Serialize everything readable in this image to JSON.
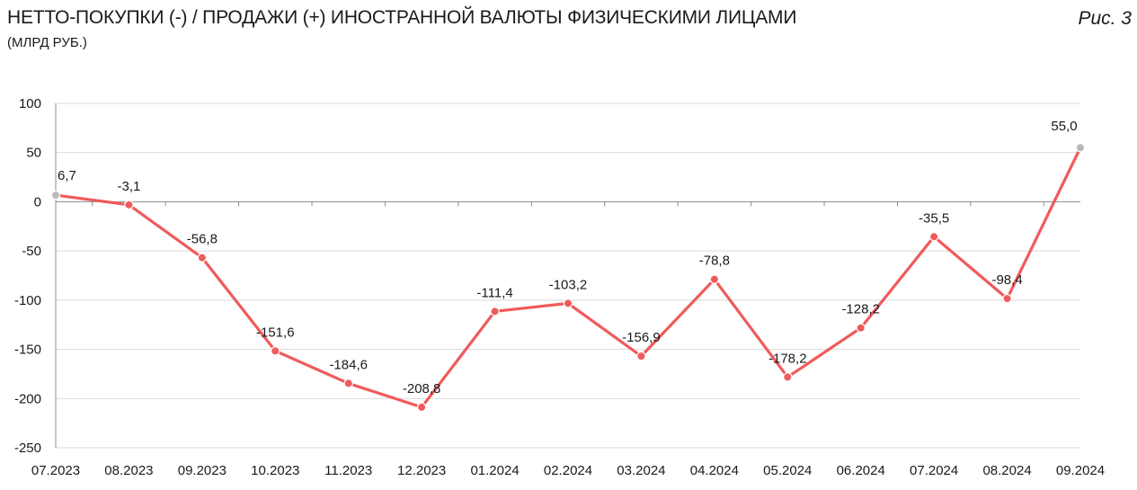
{
  "header": {
    "title": "НЕТТО-ПОКУПКИ (-) / ПРОДАЖИ (+) ИНОСТРАННОЙ ВАЛЮТЫ ФИЗИЧЕСКИМИ ЛИЦАМИ",
    "subtitle": "(МЛРД РУБ.)",
    "figure_label": "Рис. 3"
  },
  "colors": {
    "line": "#ef5b5b",
    "marker": "#ef5b5b",
    "end_marker": "#b9b9b9",
    "grid": "#d9d9d9",
    "axis": "#8c8c8c"
  },
  "chart_data": {
    "type": "line",
    "title": "НЕТТО-ПОКУПКИ (-) / ПРОДАЖИ (+) ИНОСТРАННОЙ ВАЛЮТЫ ФИЗИЧЕСКИМИ ЛИЦАМИ",
    "subtitle": "(МЛРД РУБ.)",
    "categories": [
      "07.2023",
      "08.2023",
      "09.2023",
      "10.2023",
      "11.2023",
      "12.2023",
      "01.2024",
      "02.2024",
      "03.2024",
      "04.2024",
      "05.2024",
      "06.2024",
      "07.2024",
      "08.2024",
      "09.2024"
    ],
    "values": [
      6.7,
      -3.1,
      -56.8,
      -151.6,
      -184.6,
      -208.8,
      -111.4,
      -103.2,
      -156.9,
      -78.8,
      -178.2,
      -128.2,
      -35.5,
      -98.4,
      55.0
    ],
    "data_labels": [
      "6,7",
      "-3,1",
      "-56,8",
      "-151,6",
      "-184,6",
      "-208,8",
      "-111,4",
      "-103,2",
      "-156,9",
      "-78,8",
      "-178,2",
      "-128,2",
      "-35,5",
      "-98,4",
      "55,0"
    ],
    "ylim": [
      -250,
      100
    ],
    "yticks": [
      100,
      50,
      0,
      -50,
      -100,
      -150,
      -200,
      -250
    ],
    "ytick_labels": [
      "100",
      "50",
      "0",
      "-50",
      "-100",
      "-150",
      "-200",
      "-250"
    ],
    "grid": true,
    "legend": "none"
  }
}
